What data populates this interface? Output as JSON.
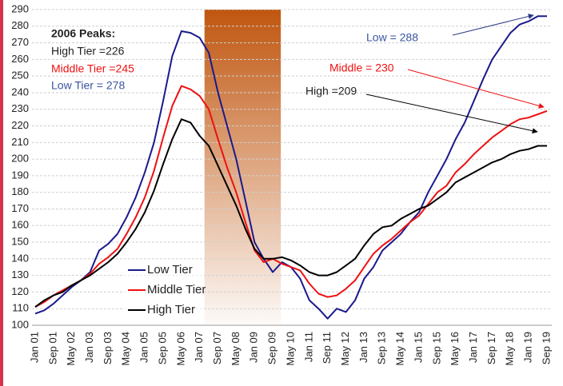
{
  "chart_data": {
    "type": "line",
    "categories": [
      "Jan 01",
      null,
      "Sep 01",
      null,
      "May 02",
      null,
      "Jan 03",
      null,
      "Sep 03",
      null,
      "May 04",
      null,
      "Jan 05",
      null,
      "Sep 05",
      null,
      "May 06",
      null,
      "Jan 07",
      null,
      "Sep 07",
      null,
      "May 08",
      null,
      "Jan 09",
      null,
      "Sep 09",
      null,
      "May 10",
      null,
      "Jan 11",
      null,
      "Sep 11",
      null,
      "May 12",
      null,
      "Jan 13",
      null,
      "Sep 13",
      null,
      "May 14",
      null,
      "Jan 15",
      null,
      "Sep 15",
      null,
      "May 16",
      null,
      "Jan 17",
      null,
      "Sep 17",
      null,
      "May 18",
      null,
      "Jan 19",
      null,
      "Sep 19"
    ],
    "series": [
      {
        "name": "Low Tier",
        "color": "#1a1a8c",
        "values": [
          107,
          109,
          113,
          118,
          123,
          127,
          132,
          145,
          149,
          155,
          165,
          177,
          192,
          210,
          235,
          262,
          277,
          276,
          273,
          264,
          240,
          220,
          200,
          175,
          150,
          140,
          132,
          138,
          135,
          128,
          115,
          110,
          104,
          110,
          108,
          115,
          128,
          135,
          145,
          150,
          155,
          162,
          168,
          180,
          190,
          200,
          212,
          222,
          235,
          248,
          260,
          268,
          276,
          281,
          283,
          286,
          286
        ]
      },
      {
        "name": "Middle Tier",
        "color": "#ee1111",
        "values": [
          111,
          114,
          118,
          121,
          124,
          127,
          131,
          137,
          141,
          146,
          155,
          165,
          177,
          193,
          213,
          232,
          244,
          242,
          238,
          230,
          212,
          195,
          180,
          162,
          145,
          138,
          140,
          137,
          135,
          133,
          125,
          119,
          117,
          118,
          122,
          127,
          135,
          143,
          148,
          152,
          157,
          162,
          166,
          173,
          180,
          184,
          192,
          197,
          203,
          208,
          213,
          217,
          221,
          224,
          225,
          227,
          229
        ]
      },
      {
        "name": "High Tier",
        "color": "#000000",
        "values": [
          111,
          115,
          118,
          120,
          124,
          127,
          130,
          134,
          138,
          143,
          150,
          158,
          168,
          181,
          197,
          212,
          224,
          222,
          214,
          208,
          196,
          184,
          172,
          158,
          146,
          140,
          140,
          141,
          139,
          136,
          132,
          130,
          130,
          132,
          136,
          140,
          148,
          155,
          159,
          160,
          164,
          167,
          170,
          172,
          176,
          180,
          186,
          189,
          192,
          195,
          198,
          200,
          203,
          205,
          206,
          208,
          208
        ]
      }
    ],
    "ylim": [
      100,
      290
    ],
    "yticks": [
      100,
      110,
      120,
      130,
      140,
      150,
      160,
      170,
      180,
      190,
      200,
      210,
      220,
      230,
      240,
      250,
      260,
      270,
      280,
      290
    ],
    "grid": true,
    "annotations": {
      "peaks_title": "2006 Peaks:",
      "high_peak": "High Tier =226",
      "middle_peak": "Middle Tier =245",
      "low_peak": "Low Tier = 278",
      "low_now": "Low = 288",
      "middle_now": "Middle = 230",
      "high_now": "High =209"
    }
  }
}
